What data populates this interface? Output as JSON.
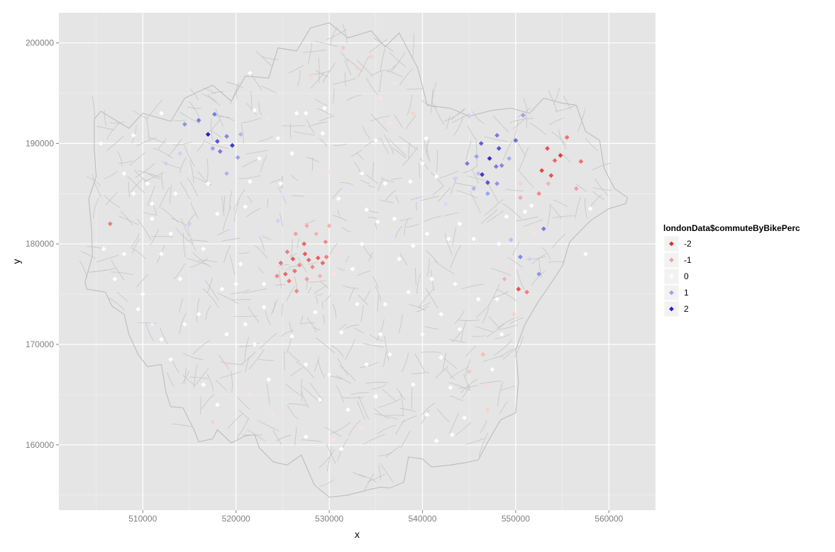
{
  "chart_data": {
    "type": "scatter",
    "title": "",
    "xlabel": "x",
    "ylabel": "y",
    "xlim": [
      501000,
      565000
    ],
    "ylim": [
      153500,
      203000
    ],
    "x_ticks": [
      510000,
      520000,
      530000,
      540000,
      550000,
      560000
    ],
    "y_ticks": [
      160000,
      170000,
      180000,
      190000,
      200000
    ],
    "x_tick_labels": [
      "510000",
      "520000",
      "530000",
      "540000",
      "550000",
      "560000"
    ],
    "y_tick_labels": [
      "160000",
      "170000",
      "180000",
      "190000",
      "200000"
    ],
    "grid": true,
    "background": "#e5e5e5",
    "legend": {
      "title": "londonData$commuteByBikePerc",
      "placement": "right",
      "entries": [
        {
          "label": "-2",
          "value": -2,
          "color": "#e03030"
        },
        {
          "label": "-1",
          "value": -1,
          "color": "#f2a0a0"
        },
        {
          "label": "0",
          "value": 0,
          "color": "#ffffff"
        },
        {
          "label": "1",
          "value": 1,
          "color": "#a0a0ec"
        },
        {
          "label": "2",
          "value": 2,
          "color": "#2020d0"
        }
      ]
    },
    "background_layer": "London ward boundary polygons (grey outlines)",
    "points_format": "[x, y, commuteByBikePerc]",
    "points": [
      [
        505500,
        190000,
        0
      ],
      [
        509000,
        190800,
        0
      ],
      [
        508000,
        187000,
        0
      ],
      [
        506500,
        182000,
        -1.3
      ],
      [
        505800,
        179500,
        0
      ],
      [
        507000,
        176500,
        0
      ],
      [
        510500,
        186000,
        0
      ],
      [
        511000,
        182500,
        0
      ],
      [
        512000,
        179000,
        0
      ],
      [
        510000,
        175000,
        0
      ],
      [
        511000,
        172000,
        0.2
      ],
      [
        513000,
        168500,
        0
      ],
      [
        512500,
        188000,
        0.5
      ],
      [
        513500,
        185000,
        0
      ],
      [
        515000,
        182000,
        0.5
      ],
      [
        514000,
        176500,
        0
      ],
      [
        516000,
        173000,
        0
      ],
      [
        516500,
        166000,
        0
      ],
      [
        516000,
        192300,
        1.3
      ],
      [
        517000,
        190900,
        2
      ],
      [
        517500,
        189500,
        1
      ],
      [
        518000,
        190200,
        1.6
      ],
      [
        518300,
        189200,
        1.3
      ],
      [
        517700,
        192900,
        1.3
      ],
      [
        519000,
        190700,
        1.2
      ],
      [
        519600,
        189800,
        1.8
      ],
      [
        520500,
        190900,
        0.8
      ],
      [
        520200,
        188600,
        1
      ],
      [
        514500,
        191900,
        1.1
      ],
      [
        519000,
        187000,
        0.8
      ],
      [
        517000,
        186000,
        0
      ],
      [
        518000,
        183000,
        0
      ],
      [
        519500,
        181000,
        0.3
      ],
      [
        520500,
        178000,
        0
      ],
      [
        518500,
        175500,
        0
      ],
      [
        521000,
        172000,
        0
      ],
      [
        519000,
        168000,
        -0.5
      ],
      [
        517500,
        162300,
        -0.5
      ],
      [
        521500,
        165000,
        -0.3
      ],
      [
        522000,
        193300,
        0
      ],
      [
        521500,
        186200,
        0
      ],
      [
        522500,
        181000,
        0.3
      ],
      [
        523000,
        176000,
        0
      ],
      [
        522000,
        170000,
        0
      ],
      [
        523500,
        166500,
        0
      ],
      [
        524000,
        163000,
        -0.3
      ],
      [
        524500,
        190500,
        0
      ],
      [
        525000,
        185000,
        0.3
      ],
      [
        524500,
        182300,
        0.5
      ],
      [
        525500,
        179200,
        -1.3
      ],
      [
        524800,
        178100,
        -1.4
      ],
      [
        525300,
        177000,
        -1.5
      ],
      [
        524400,
        176800,
        -1.2
      ],
      [
        526100,
        178500,
        -1.6
      ],
      [
        526300,
        177300,
        -1.4
      ],
      [
        525700,
        176300,
        -1.3
      ],
      [
        526800,
        177900,
        -1.2
      ],
      [
        527400,
        179000,
        -1.6
      ],
      [
        527800,
        178400,
        -1.5
      ],
      [
        528200,
        177700,
        -1.2
      ],
      [
        528800,
        178600,
        -1.6
      ],
      [
        529300,
        178100,
        -1.5
      ],
      [
        529700,
        178700,
        -1.3
      ],
      [
        527300,
        180000,
        -1.5
      ],
      [
        526400,
        181000,
        -1.0
      ],
      [
        527600,
        181800,
        -0.9
      ],
      [
        528600,
        181000,
        -0.8
      ],
      [
        529600,
        180200,
        -1.2
      ],
      [
        530000,
        181800,
        -0.8
      ],
      [
        526500,
        175300,
        -1.2
      ],
      [
        527600,
        176500,
        -1.0
      ],
      [
        529000,
        176800,
        -0.8
      ],
      [
        530500,
        177000,
        -0.3
      ],
      [
        531000,
        179200,
        -0.4
      ],
      [
        524800,
        186000,
        0
      ],
      [
        526000,
        189000,
        0
      ],
      [
        527500,
        193000,
        0
      ],
      [
        528000,
        196500,
        -0.4
      ],
      [
        529300,
        191000,
        0
      ],
      [
        530000,
        187200,
        -0.3
      ],
      [
        531000,
        184500,
        0
      ],
      [
        531500,
        199500,
        -0.6
      ],
      [
        533000,
        197500,
        -0.5
      ],
      [
        534500,
        198600,
        -0.5
      ],
      [
        535500,
        194500,
        -0.3
      ],
      [
        536500,
        192000,
        -0.3
      ],
      [
        535000,
        190300,
        0
      ],
      [
        533500,
        187000,
        0
      ],
      [
        532000,
        185300,
        0.3
      ],
      [
        534000,
        183400,
        0
      ],
      [
        533500,
        180000,
        0
      ],
      [
        532500,
        177500,
        0
      ],
      [
        533000,
        174000,
        0
      ],
      [
        531300,
        171200,
        0
      ],
      [
        530000,
        167000,
        0
      ],
      [
        532000,
        163500,
        0
      ],
      [
        531300,
        159600,
        0
      ],
      [
        533500,
        161700,
        -0.3
      ],
      [
        535000,
        164800,
        0
      ],
      [
        536500,
        169000,
        0
      ],
      [
        536000,
        174000,
        0
      ],
      [
        537500,
        178500,
        0
      ],
      [
        537000,
        182500,
        0
      ],
      [
        536000,
        186000,
        0
      ],
      [
        538000,
        189500,
        -0.3
      ],
      [
        539000,
        193000,
        -0.5
      ],
      [
        540000,
        188000,
        0
      ],
      [
        539500,
        184300,
        0.3
      ],
      [
        540500,
        181000,
        0
      ],
      [
        541000,
        176500,
        0
      ],
      [
        540000,
        171000,
        0
      ],
      [
        539000,
        166000,
        0
      ],
      [
        540500,
        163000,
        0
      ],
      [
        542000,
        168700,
        0
      ],
      [
        541500,
        160400,
        0
      ],
      [
        543000,
        165700,
        0
      ],
      [
        544500,
        162700,
        0
      ],
      [
        545000,
        167300,
        -0.6
      ],
      [
        546500,
        169000,
        -0.7
      ],
      [
        547000,
        163500,
        -0.5
      ],
      [
        546800,
        166000,
        -0.4
      ],
      [
        548500,
        171000,
        0
      ],
      [
        548000,
        174500,
        0
      ],
      [
        548800,
        176500,
        -0.8
      ],
      [
        549500,
        177500,
        -0.4
      ],
      [
        550300,
        175500,
        -1.7
      ],
      [
        551200,
        175200,
        -1.3
      ],
      [
        551500,
        178500,
        0.5
      ],
      [
        552000,
        181000,
        -0.3
      ],
      [
        551000,
        183200,
        0
      ],
      [
        550500,
        184600,
        -0.9
      ],
      [
        552500,
        185000,
        -1.2
      ],
      [
        553500,
        186000,
        -0.8
      ],
      [
        552800,
        187300,
        -1.8
      ],
      [
        553400,
        189500,
        -1.7
      ],
      [
        554200,
        188300,
        -1.5
      ],
      [
        554800,
        188800,
        -1.9
      ],
      [
        553800,
        186800,
        -1.7
      ],
      [
        555500,
        190600,
        -1.4
      ],
      [
        557000,
        188200,
        -1.4
      ],
      [
        556500,
        185500,
        -1.0
      ],
      [
        558000,
        183500,
        0
      ],
      [
        557500,
        179000,
        0
      ],
      [
        553000,
        181500,
        1.3
      ],
      [
        550500,
        178700,
        1.2
      ],
      [
        552500,
        177000,
        1.1
      ],
      [
        549500,
        180400,
        0.7
      ],
      [
        551700,
        183800,
        0
      ],
      [
        544800,
        188000,
        1.3
      ],
      [
        545800,
        188700,
        1
      ],
      [
        546300,
        190000,
        1.5
      ],
      [
        546400,
        186900,
        1.8
      ],
      [
        547000,
        186100,
        1.6
      ],
      [
        547200,
        188500,
        1.9
      ],
      [
        547900,
        187700,
        1.3
      ],
      [
        548200,
        189500,
        1.6
      ],
      [
        548500,
        187800,
        1.2
      ],
      [
        549300,
        188500,
        0.9
      ],
      [
        547000,
        185000,
        1
      ],
      [
        548000,
        186000,
        1.1
      ],
      [
        546000,
        187000,
        0.7
      ],
      [
        545500,
        185500,
        0.8
      ],
      [
        543500,
        186500,
        0.5
      ],
      [
        542500,
        184000,
        0.4
      ],
      [
        544000,
        182000,
        0
      ],
      [
        545500,
        180500,
        0
      ],
      [
        543500,
        176000,
        0
      ],
      [
        542000,
        173000,
        0
      ],
      [
        548000,
        190800,
        1.3
      ],
      [
        550000,
        190300,
        1.4
      ],
      [
        550800,
        192800,
        1
      ],
      [
        545000,
        192700,
        0.5
      ],
      [
        542000,
        191000,
        0.3
      ],
      [
        537000,
        196000,
        -0.3
      ],
      [
        529500,
        193500,
        0
      ],
      [
        526500,
        193000,
        0
      ],
      [
        523500,
        192500,
        -0.3
      ],
      [
        521500,
        197000,
        0
      ],
      [
        512000,
        193000,
        0
      ],
      [
        509000,
        185000,
        0
      ],
      [
        508000,
        179000,
        0
      ],
      [
        509500,
        173500,
        0
      ],
      [
        512000,
        170500,
        0
      ],
      [
        514500,
        172000,
        0
      ],
      [
        515500,
        176800,
        0.3
      ],
      [
        516500,
        179500,
        0
      ],
      [
        513000,
        181000,
        0
      ],
      [
        511000,
        184000,
        0
      ],
      [
        514000,
        189000,
        0.5
      ],
      [
        522500,
        188500,
        0
      ],
      [
        521000,
        183700,
        0
      ],
      [
        520000,
        176000,
        0
      ],
      [
        519000,
        171000,
        0
      ],
      [
        518000,
        164000,
        0
      ],
      [
        523000,
        173700,
        0
      ],
      [
        526000,
        170800,
        0
      ],
      [
        527500,
        168000,
        0
      ],
      [
        528500,
        173200,
        0
      ],
      [
        529000,
        164500,
        0
      ],
      [
        527500,
        160800,
        0
      ],
      [
        530500,
        160500,
        -0.3
      ],
      [
        534000,
        168000,
        0
      ],
      [
        535500,
        171000,
        0
      ],
      [
        538500,
        175200,
        0
      ],
      [
        539000,
        179800,
        0
      ],
      [
        536800,
        180500,
        0.3
      ],
      [
        535200,
        182200,
        0
      ],
      [
        538700,
        186200,
        0
      ],
      [
        541500,
        186700,
        0
      ],
      [
        540400,
        190500,
        0
      ],
      [
        542800,
        180500,
        0
      ],
      [
        544000,
        171500,
        0
      ],
      [
        546000,
        174500,
        0
      ],
      [
        548200,
        180000,
        0
      ],
      [
        549000,
        182700,
        0
      ],
      [
        550500,
        186000,
        -0.5
      ],
      [
        549800,
        173000,
        -0.5
      ],
      [
        547500,
        167500,
        0
      ],
      [
        543200,
        161000,
        0
      ]
    ]
  }
}
